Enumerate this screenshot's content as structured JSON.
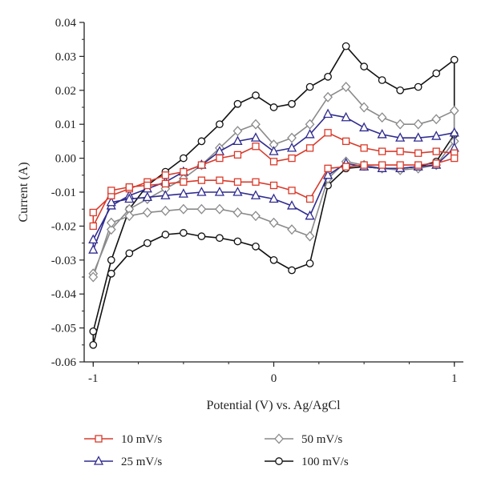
{
  "chart_data": {
    "type": "line",
    "title": "",
    "xlabel": "Potential (V) vs. Ag/AgCl",
    "ylabel": "Current (A)",
    "xlim": [
      -1.05,
      1.05
    ],
    "ylim": [
      -0.06,
      0.04
    ],
    "xticks": [
      -1,
      0,
      1
    ],
    "xtick_labels": [
      "-1",
      "0",
      "1"
    ],
    "yticks": [
      -0.06,
      -0.05,
      -0.04,
      -0.03,
      -0.02,
      -0.01,
      0.0,
      0.01,
      0.02,
      0.03,
      0.04
    ],
    "ytick_labels": [
      "-0.06",
      "-0.05",
      "-0.04",
      "-0.03",
      "-0.02",
      "-0.01",
      "0.00",
      "0.01",
      "0.02",
      "0.03",
      "0.04"
    ],
    "grid": false,
    "legend_position": "bottom",
    "series": [
      {
        "name": "10 mV/s",
        "color": "#d93a2b",
        "marker": "square",
        "x": [
          -1.0,
          -0.9,
          -0.8,
          -0.7,
          -0.6,
          -0.5,
          -0.4,
          -0.3,
          -0.2,
          -0.1,
          0.0,
          0.1,
          0.2,
          0.3,
          0.4,
          0.5,
          0.6,
          0.7,
          0.8,
          0.9,
          1.0,
          1.0,
          0.9,
          0.8,
          0.7,
          0.6,
          0.5,
          0.4,
          0.3,
          0.2,
          0.1,
          0.0,
          -0.1,
          -0.2,
          -0.3,
          -0.4,
          -0.5,
          -0.6,
          -0.7,
          -0.8,
          -0.9,
          -1.0
        ],
        "y": [
          -0.016,
          -0.011,
          -0.009,
          -0.007,
          -0.005,
          -0.004,
          -0.002,
          0.0,
          0.001,
          0.0035,
          -0.001,
          0.0,
          0.003,
          0.0075,
          0.005,
          0.003,
          0.002,
          0.002,
          0.0015,
          0.002,
          0.0015,
          0.0,
          -0.0015,
          -0.002,
          -0.002,
          -0.002,
          -0.002,
          -0.0025,
          -0.003,
          -0.012,
          -0.0095,
          -0.008,
          -0.007,
          -0.007,
          -0.0065,
          -0.0065,
          -0.007,
          -0.0075,
          -0.008,
          -0.0085,
          -0.0095,
          -0.02
        ]
      },
      {
        "name": "25 mV/s",
        "color": "#2f2b8e",
        "marker": "triangle",
        "x": [
          -1.0,
          -0.9,
          -0.8,
          -0.7,
          -0.6,
          -0.5,
          -0.4,
          -0.3,
          -0.2,
          -0.1,
          0.0,
          0.1,
          0.2,
          0.3,
          0.4,
          0.5,
          0.6,
          0.7,
          0.8,
          0.9,
          1.0,
          1.0,
          0.9,
          0.8,
          0.7,
          0.6,
          0.5,
          0.4,
          0.3,
          0.2,
          0.1,
          0.0,
          -0.1,
          -0.2,
          -0.3,
          -0.4,
          -0.5,
          -0.6,
          -0.7,
          -0.8,
          -0.9,
          -1.0
        ],
        "y": [
          -0.024,
          -0.014,
          -0.011,
          -0.009,
          -0.007,
          -0.004,
          -0.002,
          0.002,
          0.005,
          0.006,
          0.002,
          0.003,
          0.007,
          0.013,
          0.012,
          0.009,
          0.007,
          0.006,
          0.006,
          0.0065,
          0.0075,
          0.003,
          -0.002,
          -0.0025,
          -0.003,
          -0.003,
          -0.0025,
          -0.0015,
          -0.005,
          -0.017,
          -0.014,
          -0.012,
          -0.011,
          -0.01,
          -0.01,
          -0.01,
          -0.0105,
          -0.011,
          -0.0115,
          -0.012,
          -0.013,
          -0.027
        ]
      },
      {
        "name": "50 mV/s",
        "color": "#8a8a8a",
        "marker": "diamond",
        "x": [
          -1.0,
          -0.9,
          -0.8,
          -0.7,
          -0.6,
          -0.5,
          -0.4,
          -0.3,
          -0.2,
          -0.1,
          0.0,
          0.1,
          0.2,
          0.3,
          0.4,
          0.5,
          0.6,
          0.7,
          0.8,
          0.9,
          1.0,
          1.0,
          0.9,
          0.8,
          0.7,
          0.6,
          0.5,
          0.4,
          0.3,
          0.2,
          0.1,
          0.0,
          -0.1,
          -0.2,
          -0.3,
          -0.4,
          -0.5,
          -0.6,
          -0.7,
          -0.8,
          -0.9,
          -1.0
        ],
        "y": [
          -0.034,
          -0.021,
          -0.015,
          -0.012,
          -0.009,
          -0.006,
          -0.002,
          0.003,
          0.008,
          0.01,
          0.004,
          0.006,
          0.01,
          0.018,
          0.021,
          0.015,
          0.012,
          0.01,
          0.01,
          0.0115,
          0.014,
          0.005,
          -0.002,
          -0.003,
          -0.0035,
          -0.003,
          -0.002,
          -0.001,
          -0.006,
          -0.023,
          -0.021,
          -0.019,
          -0.017,
          -0.016,
          -0.015,
          -0.015,
          -0.015,
          -0.0155,
          -0.016,
          -0.017,
          -0.019,
          -0.035
        ]
      },
      {
        "name": "100 mV/s",
        "color": "#111111",
        "marker": "circle",
        "x": [
          -1.0,
          -0.9,
          -0.8,
          -0.7,
          -0.6,
          -0.5,
          -0.4,
          -0.3,
          -0.2,
          -0.1,
          0.0,
          0.1,
          0.2,
          0.3,
          0.4,
          0.5,
          0.6,
          0.7,
          0.8,
          0.9,
          1.0,
          1.0,
          0.9,
          0.8,
          0.7,
          0.6,
          0.5,
          0.4,
          0.3,
          0.2,
          0.1,
          0.0,
          -0.1,
          -0.2,
          -0.3,
          -0.4,
          -0.5,
          -0.6,
          -0.7,
          -0.8,
          -0.9,
          -1.0
        ],
        "y": [
          -0.051,
          -0.03,
          -0.015,
          -0.008,
          -0.004,
          0.0,
          0.005,
          0.01,
          0.016,
          0.0185,
          0.015,
          0.016,
          0.021,
          0.024,
          0.033,
          0.027,
          0.023,
          0.02,
          0.021,
          0.025,
          0.029,
          0.007,
          -0.001,
          -0.0025,
          -0.003,
          -0.003,
          -0.0025,
          -0.003,
          -0.008,
          -0.031,
          -0.033,
          -0.03,
          -0.026,
          -0.0245,
          -0.0235,
          -0.023,
          -0.022,
          -0.0225,
          -0.025,
          -0.028,
          -0.034,
          -0.055
        ]
      }
    ]
  }
}
